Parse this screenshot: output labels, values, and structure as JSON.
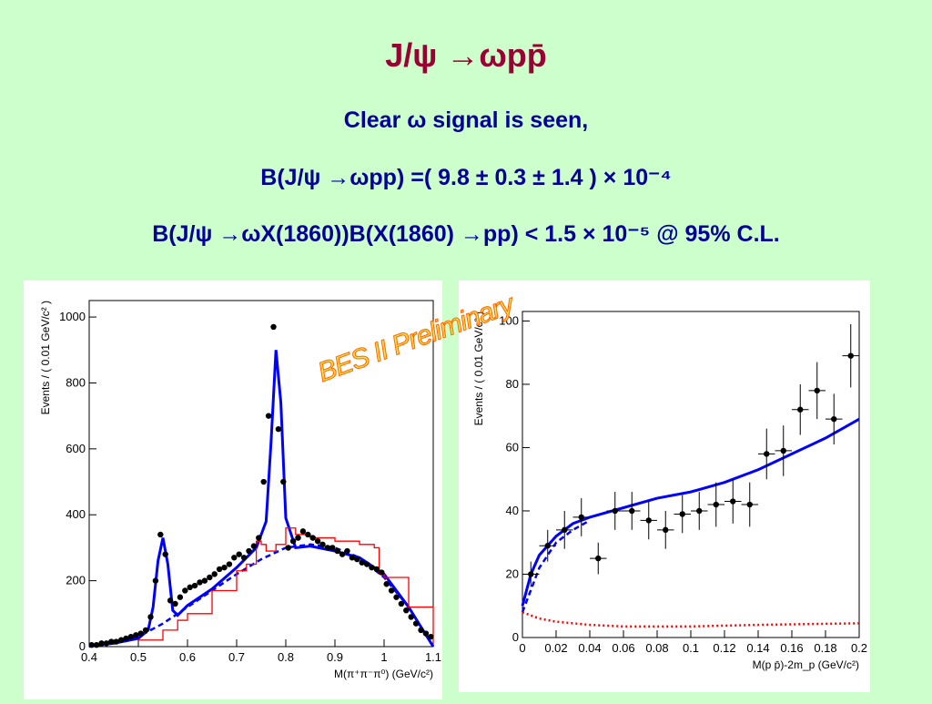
{
  "slide": {
    "title": "J/ψ →ωpp̄",
    "line1": "Clear ω signal is seen,",
    "line2": "B(J/ψ →ωpp) =( 9.8 ± 0.3 ± 1.4 ) × 10⁻⁴",
    "line3": "B(J/ψ →ωX(1860))B(X(1860) →pp) < 1.5 × 10⁻⁵ @ 95% C.L.",
    "watermark": "BES II Preliminary"
  },
  "colors": {
    "background": "#ccffcc",
    "title": "#990033",
    "text": "#000099",
    "fit": "#0000ff",
    "mc": "#ff0000",
    "data": "#000000"
  },
  "chart_data": [
    {
      "type": "scatter",
      "xlabel": "M(π⁺π⁻π⁰) (GeV/c²)",
      "ylabel": "Events / ( 0.01 GeV/c² )",
      "xlim": [
        0.4,
        1.1
      ],
      "ylim": [
        0,
        1050
      ],
      "xticks": [
        "0.4",
        "0.5",
        "0.6",
        "0.7",
        "0.8",
        "0.9",
        "1",
        "1.1"
      ],
      "yticks": [
        "0",
        "200",
        "400",
        "600",
        "800",
        "1000"
      ],
      "series": [
        {
          "kind": "data",
          "x": [
            0.405,
            0.415,
            0.425,
            0.435,
            0.445,
            0.455,
            0.465,
            0.475,
            0.485,
            0.495,
            0.505,
            0.515,
            0.525,
            0.535,
            0.545,
            0.555,
            0.565,
            0.575,
            0.585,
            0.595,
            0.605,
            0.615,
            0.625,
            0.635,
            0.645,
            0.655,
            0.665,
            0.675,
            0.685,
            0.695,
            0.705,
            0.715,
            0.725,
            0.735,
            0.745,
            0.755,
            0.765,
            0.775,
            0.785,
            0.795,
            0.805,
            0.815,
            0.825,
            0.835,
            0.845,
            0.855,
            0.865,
            0.875,
            0.885,
            0.895,
            0.905,
            0.915,
            0.925,
            0.935,
            0.945,
            0.955,
            0.965,
            0.975,
            0.985,
            0.995,
            1.005,
            1.015,
            1.025,
            1.035,
            1.045,
            1.055,
            1.065,
            1.075,
            1.085,
            1.095
          ],
          "y": [
            5,
            5,
            10,
            10,
            15,
            15,
            20,
            25,
            30,
            35,
            40,
            50,
            90,
            200,
            340,
            280,
            140,
            130,
            150,
            170,
            180,
            185,
            195,
            200,
            210,
            220,
            235,
            240,
            250,
            270,
            280,
            270,
            290,
            305,
            330,
            500,
            700,
            970,
            660,
            500,
            300,
            320,
            330,
            350,
            340,
            330,
            320,
            310,
            300,
            300,
            290,
            280,
            290,
            270,
            265,
            255,
            250,
            240,
            235,
            225,
            190,
            170,
            150,
            130,
            110,
            90,
            70,
            50,
            40,
            30
          ]
        },
        {
          "kind": "fit",
          "x": [
            0.4,
            0.45,
            0.5,
            0.52,
            0.53,
            0.54,
            0.55,
            0.56,
            0.57,
            0.58,
            0.6,
            0.65,
            0.7,
            0.74,
            0.76,
            0.77,
            0.78,
            0.79,
            0.8,
            0.82,
            0.85,
            0.9,
            0.95,
            1.0,
            1.05,
            1.1
          ],
          "y": [
            3,
            10,
            25,
            50,
            120,
            260,
            330,
            250,
            110,
            95,
            125,
            175,
            240,
            300,
            380,
            620,
            900,
            740,
            390,
            300,
            305,
            290,
            270,
            220,
            120,
            0
          ]
        },
        {
          "kind": "background",
          "x": [
            0.4,
            0.45,
            0.5,
            0.55,
            0.6,
            0.65,
            0.7,
            0.75,
            0.8,
            0.85,
            0.9,
            0.95,
            1.0,
            1.05,
            1.1
          ],
          "y": [
            0,
            10,
            30,
            70,
            120,
            170,
            220,
            265,
            300,
            310,
            300,
            270,
            210,
            120,
            0
          ]
        },
        {
          "kind": "mc",
          "x": [
            0.5,
            0.55,
            0.58,
            0.6,
            0.65,
            0.7,
            0.72,
            0.74,
            0.75,
            0.76,
            0.78,
            0.8,
            0.82,
            0.85,
            0.9,
            0.95,
            0.98,
            0.99,
            1.0,
            1.05,
            1.1
          ],
          "y": [
            20,
            50,
            80,
            100,
            170,
            230,
            250,
            320,
            310,
            290,
            310,
            360,
            340,
            330,
            320,
            310,
            300,
            220,
            210,
            120,
            10
          ]
        }
      ]
    },
    {
      "type": "scatter",
      "xlabel": "M(p p̄)-2m_p (GeV/c²)",
      "ylabel": "Events / ( 0.01 GeV/c² )",
      "xlim": [
        0,
        0.2
      ],
      "ylim": [
        0,
        103
      ],
      "xticks": [
        "0",
        "0.02",
        "0.04",
        "0.06",
        "0.08",
        "0.1",
        "0.12",
        "0.14",
        "0.16",
        "0.18",
        "0.2"
      ],
      "yticks": [
        "0",
        "20",
        "40",
        "60",
        "80",
        "100"
      ],
      "series": [
        {
          "kind": "data",
          "x": [
            0.005,
            0.015,
            0.025,
            0.035,
            0.045,
            0.055,
            0.065,
            0.075,
            0.085,
            0.095,
            0.105,
            0.115,
            0.125,
            0.135,
            0.145,
            0.155,
            0.165,
            0.175,
            0.185,
            0.195
          ],
          "y": [
            20,
            29,
            34,
            38,
            25,
            40,
            40,
            37,
            34,
            39,
            40,
            42,
            43,
            42,
            58,
            59,
            72,
            78,
            69,
            89
          ],
          "err": [
            4,
            5,
            6,
            6,
            5,
            6,
            6,
            6,
            6,
            6,
            6,
            7,
            7,
            7,
            8,
            8,
            8,
            9,
            8,
            10
          ]
        },
        {
          "kind": "fit",
          "x": [
            0.0,
            0.005,
            0.01,
            0.02,
            0.03,
            0.04,
            0.06,
            0.08,
            0.1,
            0.12,
            0.14,
            0.16,
            0.18,
            0.2
          ],
          "y": [
            10,
            20,
            26,
            32,
            36,
            38,
            41,
            44,
            46,
            49,
            53,
            58,
            63,
            69
          ]
        },
        {
          "kind": "background",
          "x": [
            0.0,
            0.005,
            0.01,
            0.02,
            0.03,
            0.04
          ],
          "y": [
            8,
            15,
            22,
            30,
            34,
            37
          ]
        },
        {
          "kind": "mc",
          "x": [
            0.0,
            0.01,
            0.02,
            0.04,
            0.06,
            0.1,
            0.14,
            0.2
          ],
          "y": [
            8,
            6,
            5,
            4,
            3.5,
            3.5,
            4,
            4.5
          ]
        }
      ]
    }
  ]
}
